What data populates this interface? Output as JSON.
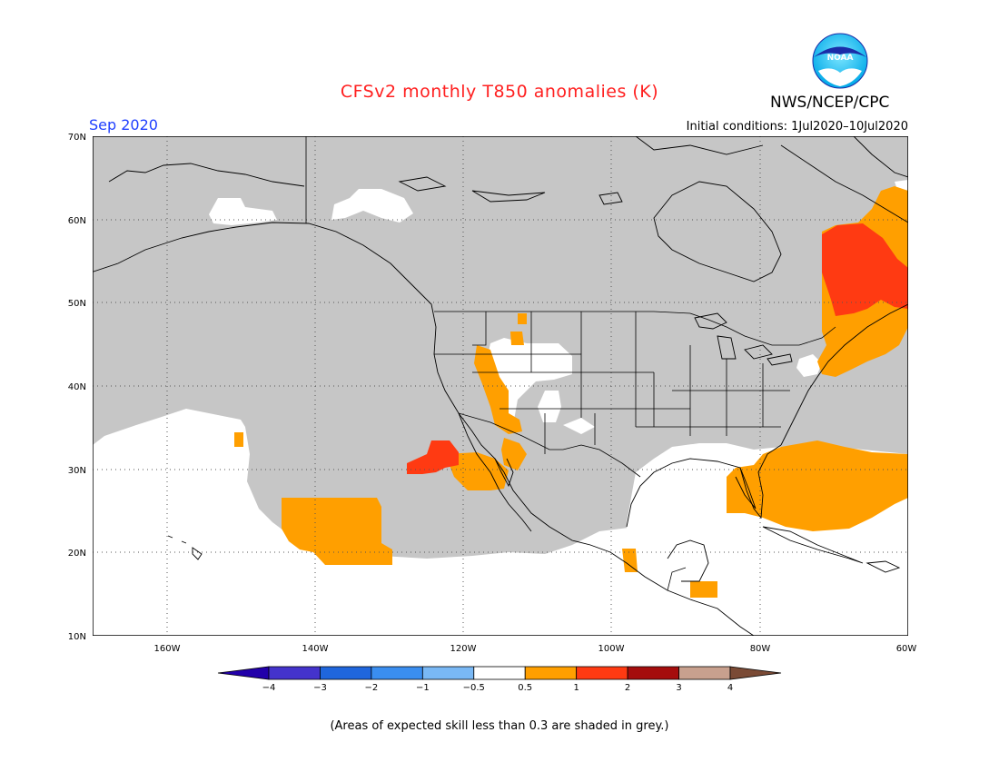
{
  "header": {
    "title": "CFSv2 monthly T850 anomalies (K)",
    "period": "Sep 2020",
    "initial_conditions": "Initial conditions: 1Jul2020–10Jul2020",
    "agency": "NWS/NCEP/CPC",
    "logo_text": "NOAA"
  },
  "map": {
    "region": "North America / Eastern Pacific / Gulf of Mexico",
    "lat_range": [
      10,
      70
    ],
    "lon_range": [
      -170,
      -60
    ],
    "lat_labels": [
      "70N",
      "60N",
      "50N",
      "40N",
      "30N",
      "20N",
      "10N"
    ],
    "lon_labels": [
      "160W",
      "140W",
      "120W",
      "100W",
      "80W",
      "60W"
    ],
    "gridlines": "dotted",
    "skill_mask_color": "#c6c6c6"
  },
  "colorbar": {
    "tick_labels": [
      "−4",
      "−3",
      "−2",
      "−1",
      "−0.5",
      "0.5",
      "1",
      "2",
      "3",
      "4"
    ],
    "colors": [
      "#2200aa",
      "#4433cc",
      "#1f66dd",
      "#3a8ef0",
      "#79b8f5",
      "#ffffff",
      "#ff9f00",
      "#ff3a12",
      "#a50d0d",
      "#c8a08e",
      "#7a4a35"
    ]
  },
  "footnote": "(Areas of expected skill less than 0.3 are shaded in grey.)"
}
